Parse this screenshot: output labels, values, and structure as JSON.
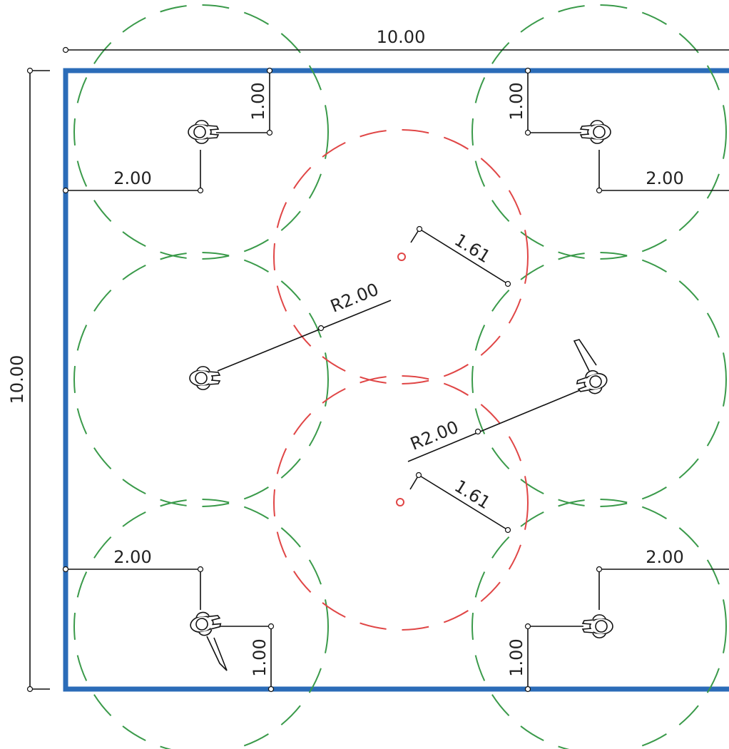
{
  "colors": {
    "room_wall": "#2b6cb8",
    "personal_zone": "#3a9a4a",
    "shared_zone": "#e04646",
    "dimension": "#111111"
  },
  "dimensions": {
    "overall_width": "10.00",
    "overall_height": "10.00",
    "tl_offset_x": "2.00",
    "tl_offset_y": "1.00",
    "tr_offset_x": "2.00",
    "tr_offset_y": "1.00",
    "bl_offset_x": "2.00",
    "bl_offset_y": "1.00",
    "br_offset_x": "2.00",
    "br_offset_y": "1.00",
    "center_upper_distance": "1.61",
    "center_lower_distance": "1.61",
    "radius_left": "R2.00",
    "radius_right": "R2.00"
  },
  "icons": {
    "person": "person-top-view-icon"
  }
}
